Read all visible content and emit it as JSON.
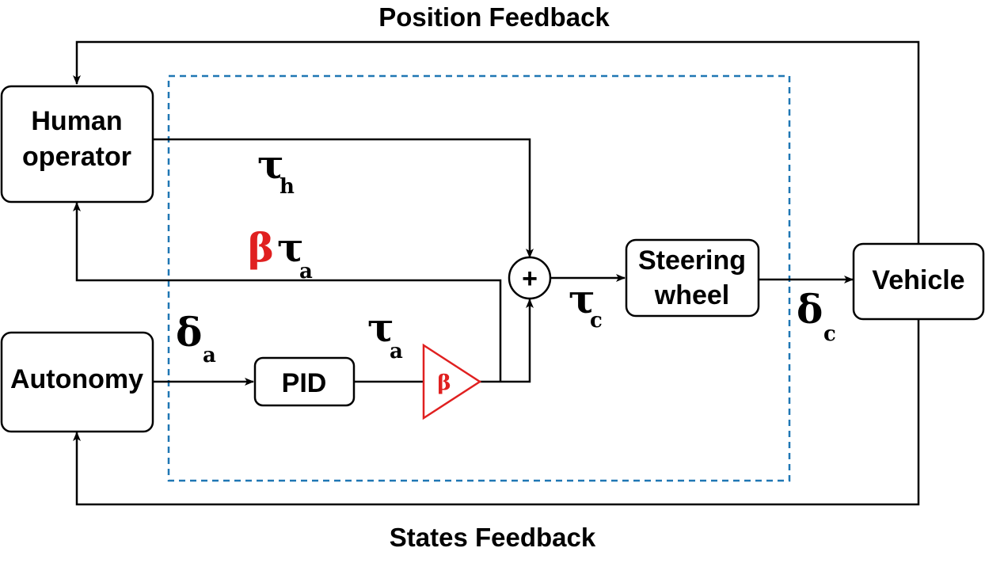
{
  "feedback": {
    "top": "Position Feedback",
    "bottom": "States Feedback"
  },
  "blocks": {
    "human": [
      "Human",
      "operator"
    ],
    "autonomy": "Autonomy",
    "pid": "PID",
    "steering": [
      "Steering",
      "wheel"
    ],
    "vehicle": "Vehicle",
    "sum": "+",
    "gain": "β"
  },
  "signals": {
    "tau_h": {
      "sym": "τ",
      "sub": "h"
    },
    "beta_tau_a": {
      "coef": "β",
      "sym": "τ",
      "sub": "a"
    },
    "delta_a": {
      "sym": "δ",
      "sub": "a"
    },
    "tau_a": {
      "sym": "τ",
      "sub": "a"
    },
    "tau_c": {
      "sym": "τ",
      "sub": "c"
    },
    "delta_c": {
      "sym": "δ",
      "sub": "c"
    }
  },
  "colors": {
    "dashed_region": "#1f77b4",
    "highlight": "#e02020",
    "line": "#000000"
  }
}
